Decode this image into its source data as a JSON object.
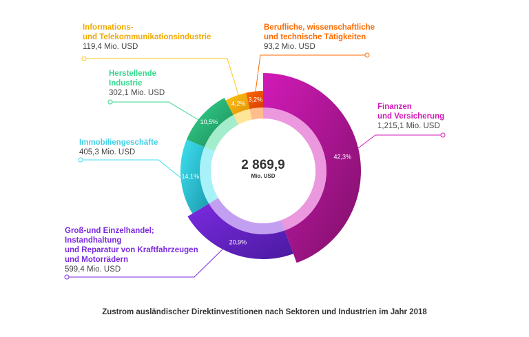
{
  "chart_data": {
    "type": "pie",
    "total": "2 869,9",
    "total_unit": "Mio. USD",
    "caption": "Zustrom ausländischer Direktinvestitionen nach Sektoren und Industrien im Jahr 2018",
    "slices": [
      {
        "name_lines": [
          "Finanzen",
          "und Versicherung"
        ],
        "value": 1215.1,
        "value_label": "1,215,1 Mio. USD",
        "percent_label": "42,3%",
        "color": "#d21ab8",
        "color_dark": "#7e1068"
      },
      {
        "name_lines": [
          "Groß-und Einzelhandel;",
          "Instandhaltung",
          "und Reparatur von Kraftfahrzeugen",
          "und Motorrädern"
        ],
        "value": 599.4,
        "value_label": "599,4 Mio. USD",
        "percent_label": "20,9%",
        "color": "#7b2ae0",
        "color_dark": "#4a1aa0"
      },
      {
        "name_lines": [
          "Immobiliengeschäfte"
        ],
        "value": 405.3,
        "value_label": "405,3 Mio. USD",
        "percent_label": "14,1%",
        "color": "#3fe0f0",
        "color_dark": "#1a9cae"
      },
      {
        "name_lines": [
          "Herstellende",
          "Industrie"
        ],
        "value": 302.1,
        "value_label": "302,1 Mio. USD",
        "percent_label": "10,5%",
        "color": "#35d78e",
        "color_dark": "#1c8a5a"
      },
      {
        "name_lines": [
          "Informations-",
          "und Telekommunikationsindustrie"
        ],
        "value": 119.4,
        "value_label": "119,4 Mio. USD",
        "percent_label": "4,2%",
        "color": "#ffc61a",
        "color_dark": "#e09000"
      },
      {
        "name_lines": [
          "Berufliche, wissenschaftliche",
          "und technische Tätigkeiten"
        ],
        "value": 93.2,
        "value_label": "93,2 Mio. USD",
        "percent_label": "3,2%",
        "color": "#ff6a00",
        "color_dark": "#d63a00"
      }
    ]
  }
}
